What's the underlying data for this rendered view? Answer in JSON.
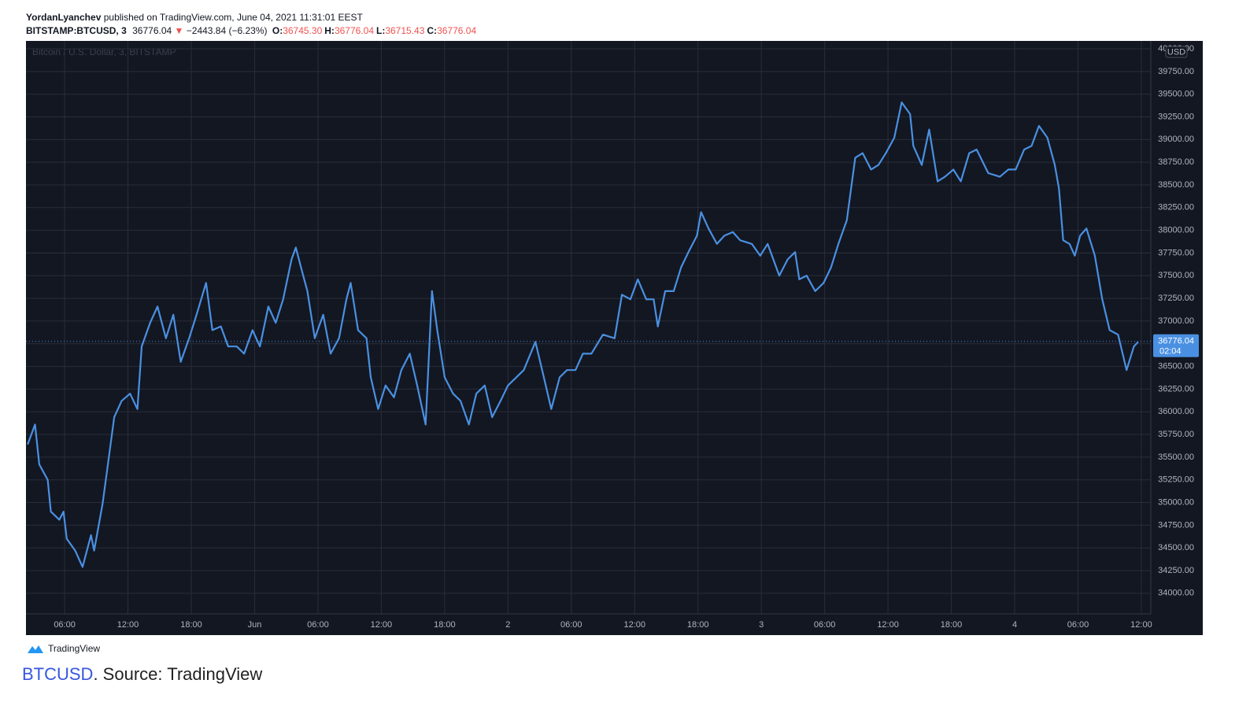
{
  "header": {
    "author": "YordanLyanchev",
    "published": "published on TradingView.com, June 04, 2021 11:31:01 EEST",
    "symbol": "BITSTAMP:BTCUSD, 3",
    "price": "36776.04",
    "arrow": "▼",
    "change": "−2443.84 (−6.23%)",
    "ohlc": [
      {
        "key": "O:",
        "value": "36745.30"
      },
      {
        "key": "H:",
        "value": "36776.04"
      },
      {
        "key": "L:",
        "value": "36715.43"
      },
      {
        "key": "C:",
        "value": "36776.04"
      }
    ]
  },
  "chart_data": {
    "type": "line",
    "watermark": "Bitcoin / U.S. Dollar, 3, BITSTAMP",
    "currency": "USD",
    "color": "#4a90e2",
    "grid": true,
    "last_price": 36776.04,
    "countdown": "02:04",
    "x": [
      2.5,
      3.2,
      3.6,
      4.4,
      4.7,
      5.5,
      5.9,
      6.2,
      7.0,
      7.7,
      8.5,
      8.8,
      9.6,
      10.3,
      10.7,
      11.4,
      12.2,
      12.9,
      13.3,
      14.1,
      14.8,
      15.6,
      16.3,
      17.0,
      17.8,
      18.5,
      19.4,
      20.0,
      20.8,
      21.5,
      22.3,
      23.0,
      23.8,
      24.5,
      25.3,
      26.0,
      26.7,
      27.5,
      27.9,
      28.6,
      29.0,
      29.7,
      30.5,
      31.2,
      32.0,
      32.7,
      33.1,
      33.8,
      34.6,
      35.0,
      35.7,
      36.4,
      37.2,
      37.9,
      38.7,
      39.4,
      40.2,
      40.8,
      41.3,
      42.0,
      42.8,
      43.5,
      44.3,
      45.0,
      45.8,
      46.5,
      47.3,
      48.0,
      48.8,
      49.5,
      50.6,
      51.4,
      52.1,
      52.9,
      53.6,
      54.4,
      55.1,
      55.9,
      57.0,
      58.1,
      58.8,
      59.6,
      60.3,
      61.1,
      61.8,
      62.2,
      62.9,
      63.7,
      64.4,
      65.1,
      65.9,
      66.3,
      67.0,
      67.8,
      68.5,
      69.3,
      70.0,
      71.1,
      71.9,
      72.6,
      73.7,
      74.5,
      75.2,
      75.6,
      76.3,
      77.1,
      77.9,
      78.6,
      79.3,
      80.1,
      80.4,
      80.9,
      81.6,
      82.4,
      83.1,
      83.8,
      84.6,
      85.3,
      86.1,
      86.4,
      87.2,
      87.9,
      88.7,
      89.4,
      90.2,
      90.9,
      91.7,
      92.4,
      93.5,
      94.6,
      95.4,
      96.1,
      96.9,
      97.6,
      98.3,
      99.1,
      99.8,
      100.2,
      100.6,
      101.2,
      101.7,
      102.2,
      102.8,
      103.6,
      104.3,
      105.0,
      105.8,
      106.6,
      107.3,
      107.7
    ],
    "values": [
      35640,
      35860,
      35420,
      35250,
      34900,
      34810,
      34900,
      34600,
      34470,
      34290,
      34640,
      34470,
      34990,
      35590,
      35940,
      36120,
      36200,
      36030,
      36720,
      36980,
      37160,
      36810,
      37070,
      36550,
      36810,
      37070,
      37420,
      36900,
      36940,
      36720,
      36720,
      36640,
      36900,
      36720,
      37160,
      36980,
      37240,
      37680,
      37810,
      37500,
      37330,
      36810,
      37070,
      36640,
      36810,
      37240,
      37420,
      36900,
      36810,
      36380,
      36030,
      36290,
      36160,
      36460,
      36640,
      36290,
      35860,
      37330,
      36900,
      36380,
      36200,
      36120,
      35860,
      36200,
      36290,
      35940,
      36120,
      36290,
      36380,
      36460,
      36770,
      36380,
      36030,
      36380,
      36460,
      36460,
      36640,
      36640,
      36850,
      36810,
      37290,
      37240,
      37460,
      37240,
      37240,
      36940,
      37330,
      37330,
      37590,
      37760,
      37940,
      38200,
      38020,
      37850,
      37940,
      37980,
      37890,
      37850,
      37720,
      37850,
      37500,
      37680,
      37760,
      37460,
      37500,
      37330,
      37420,
      37590,
      37850,
      38110,
      38370,
      38800,
      38850,
      38670,
      38720,
      38850,
      39020,
      39410,
      39280,
      38930,
      38720,
      39110,
      38540,
      38590,
      38670,
      38540,
      38850,
      38890,
      38630,
      38590,
      38670,
      38670,
      38890,
      38930,
      39150,
      39020,
      38720,
      38460,
      37890,
      37850,
      37720,
      37940,
      38020,
      37720,
      37240,
      36900,
      36850,
      36460,
      36720,
      36770
    ],
    "xlim": [
      2.34,
      108.9
    ],
    "xticks": [
      {
        "value": 6,
        "label": "06:00"
      },
      {
        "value": 12,
        "label": "12:00"
      },
      {
        "value": 18,
        "label": "18:00"
      },
      {
        "value": 24,
        "label": "Jun"
      },
      {
        "value": 30,
        "label": "06:00"
      },
      {
        "value": 36,
        "label": "12:00"
      },
      {
        "value": 42,
        "label": "18:00"
      },
      {
        "value": 48,
        "label": "2"
      },
      {
        "value": 54,
        "label": "06:00"
      },
      {
        "value": 60,
        "label": "12:00"
      },
      {
        "value": 66,
        "label": "18:00"
      },
      {
        "value": 72,
        "label": "3"
      },
      {
        "value": 78,
        "label": "06:00"
      },
      {
        "value": 84,
        "label": "12:00"
      },
      {
        "value": 90,
        "label": "18:00"
      },
      {
        "value": 96,
        "label": "4"
      },
      {
        "value": 102,
        "label": "06:00"
      },
      {
        "value": 108,
        "label": "12:00"
      }
    ],
    "ylim": [
      33773,
      40087
    ],
    "yticks": [
      {
        "value": 34000,
        "label": "34000.00"
      },
      {
        "value": 34250,
        "label": "34250.00"
      },
      {
        "value": 34500,
        "label": "34500.00"
      },
      {
        "value": 34750,
        "label": "34750.00"
      },
      {
        "value": 35000,
        "label": "35000.00"
      },
      {
        "value": 35250,
        "label": "35250.00"
      },
      {
        "value": 35500,
        "label": "35500.00"
      },
      {
        "value": 35750,
        "label": "35750.00"
      },
      {
        "value": 36000,
        "label": "36000.00"
      },
      {
        "value": 36250,
        "label": "36250.00"
      },
      {
        "value": 36500,
        "label": "36500.00"
      },
      {
        "value": 36750,
        "label": "36750.00"
      },
      {
        "value": 37000,
        "label": "37000.00"
      },
      {
        "value": 37250,
        "label": "37250.00"
      },
      {
        "value": 37500,
        "label": "37500.00"
      },
      {
        "value": 37750,
        "label": "37750.00"
      },
      {
        "value": 38000,
        "label": "38000.00"
      },
      {
        "value": 38250,
        "label": "38250.00"
      },
      {
        "value": 38500,
        "label": "38500.00"
      },
      {
        "value": 38750,
        "label": "38750.00"
      },
      {
        "value": 39000,
        "label": "39000.00"
      },
      {
        "value": 39250,
        "label": "39250.00"
      },
      {
        "value": 39500,
        "label": "39500.00"
      },
      {
        "value": 39750,
        "label": "39750.00"
      },
      {
        "value": 40000,
        "label": "40000.00"
      }
    ]
  },
  "footer": {
    "logo": "TradingView",
    "link": "BTCUSD",
    "caption": ". Source: TradingView"
  }
}
